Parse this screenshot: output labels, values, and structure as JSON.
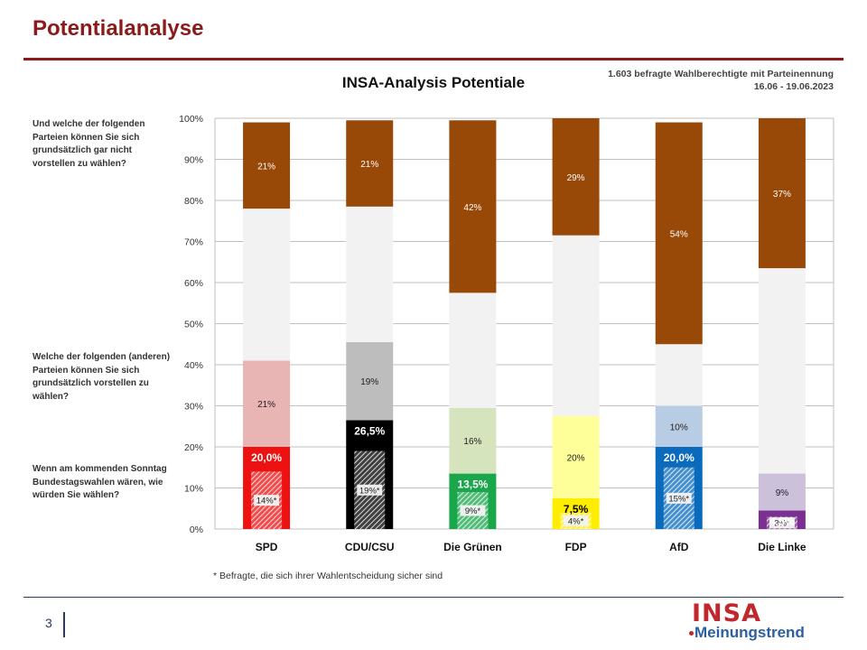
{
  "header": {
    "title": "Potentialanalyse"
  },
  "meta": {
    "line1": "1.603 befragte Wahlberechtigte mit Parteinennung",
    "line2": "16.06 - 19.06.2023"
  },
  "questions": {
    "top": "Und welche der folgenden Parteien können Sie sich grundsätzlich  gar nicht vorstellen zu wählen?",
    "middle": "Welche der folgenden (anderen) Parteien können Sie sich  grundsätzlich vorstellen zu wählen?",
    "bottom": "Wenn am kommenden Sonntag Bundestagswahlen wären, wie würden Sie wählen?"
  },
  "footnote": "* Befragte, die sich ihrer Wahlentscheidung sicher sind",
  "footer": {
    "page_number": "3",
    "logo_main": "INSA",
    "logo_sub": "Meinungstrend"
  },
  "chart_data": {
    "type": "bar",
    "stacked": true,
    "title": "INSA-Analysis Potentiale",
    "ylim": [
      0,
      100
    ],
    "yticks": [
      "0%",
      "10%",
      "20%",
      "30%",
      "40%",
      "50%",
      "60%",
      "70%",
      "80%",
      "90%",
      "100%"
    ],
    "categories": [
      "SPD",
      "CDU/CSU",
      "Die Grünen",
      "FDP",
      "AfD",
      "Die Linke"
    ],
    "series": [
      {
        "values": [
          20.0,
          26.5,
          13.5,
          7.5,
          20.0,
          4.5
        ],
        "labels": [
          "20,0%",
          "26,5%",
          "13,5%",
          "7,5%",
          "20,0%",
          "4,5%"
        ]
      },
      {
        "values": [
          21,
          19,
          16,
          20,
          10,
          9
        ],
        "labels": [
          "21%",
          "19%",
          "16%",
          "20%",
          "10%",
          "9%"
        ]
      },
      {
        "values": [
          37,
          33,
          28,
          44,
          15,
          50
        ],
        "labels": [
          "",
          "",
          "",
          "",
          "",
          ""
        ]
      },
      {
        "values": [
          21,
          21,
          42,
          29,
          54,
          37
        ],
        "labels": [
          "21%",
          "21%",
          "42%",
          "29%",
          "54%",
          "37%"
        ]
      }
    ],
    "sure_voters": {
      "values": [
        14,
        19,
        9,
        4,
        15,
        3
      ],
      "labels": [
        "14%*",
        "19%*",
        "9%*",
        "4%*",
        "15%*",
        "3%*"
      ]
    },
    "colors": {
      "vote": [
        "#ee1111",
        "#000000",
        "#1aa64b",
        "#ffed00",
        "#0a6bbd",
        "#7b2f8e"
      ],
      "potential": [
        "#e8b4b4",
        "#bdbdbd",
        "#d6e4bd",
        "#ffff99",
        "#b8cce4",
        "#ccc0da"
      ],
      "undecided": "#f2f2f2",
      "rejection": "#984807",
      "vote_label_text": [
        "#ffffff",
        "#ffffff",
        "#ffffff",
        "#000000",
        "#ffffff",
        "#ffffff"
      ]
    },
    "grid": true,
    "legend": "none"
  }
}
